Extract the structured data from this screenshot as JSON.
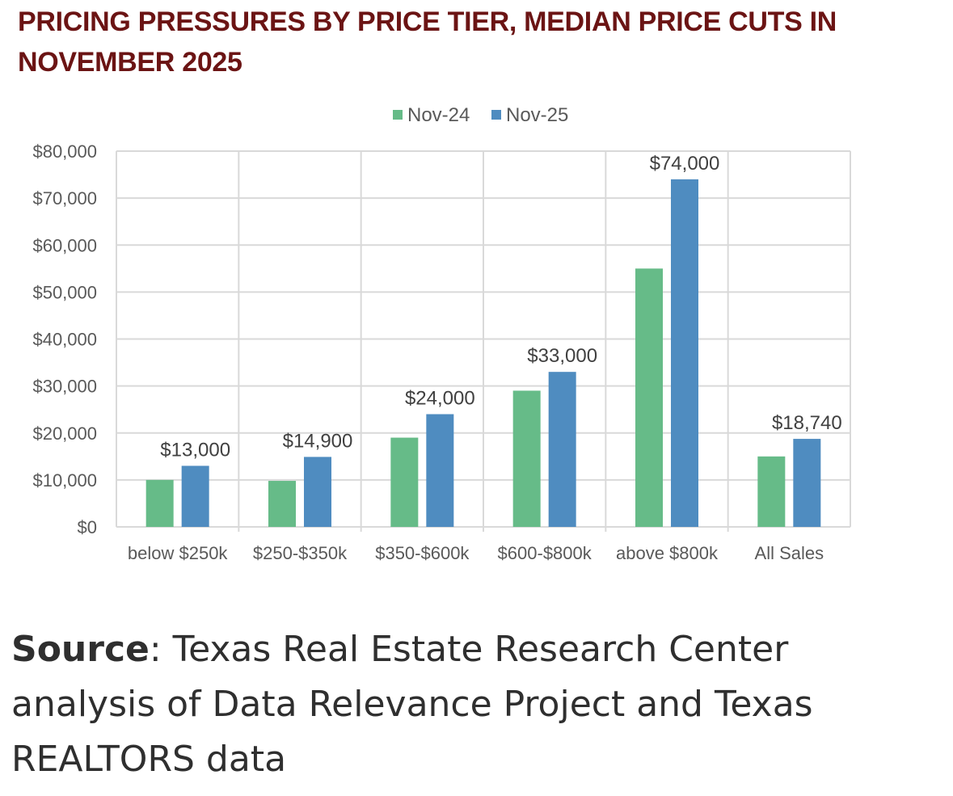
{
  "header": {
    "title": "PRICING PRESSURES BY PRICE TIER, MEDIAN PRICE CUTS IN NOVEMBER 2025"
  },
  "chart_data": {
    "type": "bar",
    "title": "PRICING PRESSURES BY PRICE TIER, MEDIAN PRICE CUTS IN NOVEMBER 2025",
    "xlabel": "",
    "ylabel": "",
    "ylim": [
      0,
      80000
    ],
    "yticks": [
      0,
      10000,
      20000,
      30000,
      40000,
      50000,
      60000,
      70000,
      80000
    ],
    "ytick_labels": [
      "$0",
      "$10,000",
      "$20,000",
      "$30,000",
      "$40,000",
      "$50,000",
      "$60,000",
      "$70,000",
      "$80,000"
    ],
    "grid": true,
    "legend_position": "top-center",
    "categories": [
      "below $250k",
      "$250-$350k",
      "$350-$600k",
      "$600-$800k",
      "above $800k",
      "All Sales"
    ],
    "series": [
      {
        "name": "Nov-24",
        "color": "#66bb88",
        "values": [
          10000,
          9800,
          19000,
          29000,
          55000,
          15000
        ]
      },
      {
        "name": "Nov-25",
        "color": "#4f8cc0",
        "values": [
          13000,
          14900,
          24000,
          33000,
          74000,
          18740
        ],
        "data_labels": [
          "$13,000",
          "$14,900",
          "$24,000",
          "$33,000",
          "$74,000",
          "$18,740"
        ]
      }
    ]
  },
  "source": {
    "label": "Source",
    "text": ": Texas Real Estate Research Center analysis of Data Relevance Project and Texas REALTORS data"
  }
}
